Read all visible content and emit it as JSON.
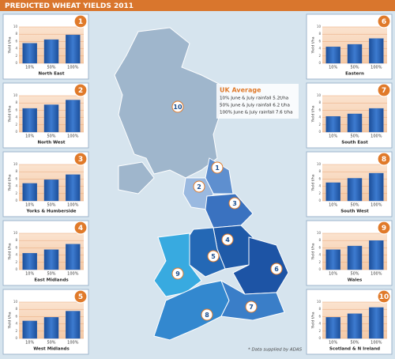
{
  "title": "PREDICTED WHEAT YIELDS 2011",
  "uk_average": {
    "heading": "UK Average",
    "lines": [
      "10% June & July rainfall 5.2t/ha",
      "50% June & July rainfall 6.2 t/ha",
      "100% June & July rainfall 7.6 t/ha"
    ]
  },
  "footnote": "* Data supplied by ADAS",
  "chart_data": [
    {
      "type": "bar",
      "badge": "1",
      "title": "North East",
      "y_label": "Yield t/ha",
      "categories": [
        "10%",
        "50%",
        "100%"
      ],
      "values": [
        5.5,
        6.5,
        7.8
      ],
      "color": "#2a63b3",
      "ylim": [
        0,
        10
      ],
      "yticks": [
        0,
        2,
        4,
        6,
        8,
        10
      ],
      "grid": true
    },
    {
      "type": "bar",
      "badge": "2",
      "title": "North West",
      "y_label": "Yield t/ha",
      "categories": [
        "10%",
        "50%",
        "100%"
      ],
      "values": [
        6.5,
        7.5,
        8.8
      ],
      "color": "#2a63b3",
      "ylim": [
        0,
        10
      ],
      "yticks": [
        0,
        2,
        4,
        6,
        8,
        10
      ],
      "grid": true
    },
    {
      "type": "bar",
      "badge": "3",
      "title": "Yorks & Humberside",
      "y_label": "Yield t/ha",
      "categories": [
        "10%",
        "50%",
        "100%"
      ],
      "values": [
        4.8,
        5.8,
        7.2
      ],
      "color": "#2a63b3",
      "ylim": [
        0,
        10
      ],
      "yticks": [
        0,
        2,
        4,
        6,
        8,
        10
      ],
      "grid": true
    },
    {
      "type": "bar",
      "badge": "4",
      "title": "East Midlands",
      "y_label": "Yield t/ha",
      "categories": [
        "10%",
        "50%",
        "100%"
      ],
      "values": [
        4.5,
        5.5,
        7.0
      ],
      "color": "#2a63b3",
      "ylim": [
        0,
        10
      ],
      "yticks": [
        0,
        2,
        4,
        6,
        8,
        10
      ],
      "grid": true
    },
    {
      "type": "bar",
      "badge": "5",
      "title": "West Midlands",
      "y_label": "Yield t/ha",
      "categories": [
        "10%",
        "50%",
        "100%"
      ],
      "values": [
        4.8,
        5.8,
        7.5
      ],
      "color": "#2a63b3",
      "ylim": [
        0,
        10
      ],
      "yticks": [
        0,
        2,
        4,
        6,
        8,
        10
      ],
      "grid": true
    },
    {
      "type": "bar",
      "badge": "6",
      "title": "Eastern",
      "y_label": "Yield t/ha",
      "categories": [
        "10%",
        "50%",
        "100%"
      ],
      "values": [
        4.5,
        5.2,
        6.8
      ],
      "color": "#2a63b3",
      "ylim": [
        0,
        10
      ],
      "yticks": [
        0,
        2,
        4,
        6,
        8,
        10
      ],
      "grid": true
    },
    {
      "type": "bar",
      "badge": "7",
      "title": "South East",
      "y_label": "Yield t/ha",
      "categories": [
        "10%",
        "50%",
        "100%"
      ],
      "values": [
        4.3,
        5.0,
        6.5
      ],
      "color": "#2a63b3",
      "ylim": [
        0,
        10
      ],
      "yticks": [
        0,
        2,
        4,
        6,
        8,
        10
      ],
      "grid": true
    },
    {
      "type": "bar",
      "badge": "8",
      "title": "South West",
      "y_label": "Yield t/ha",
      "categories": [
        "10%",
        "50%",
        "100%"
      ],
      "values": [
        5.0,
        6.2,
        7.6
      ],
      "color": "#2a63b3",
      "ylim": [
        0,
        10
      ],
      "yticks": [
        0,
        2,
        4,
        6,
        8,
        10
      ],
      "grid": true
    },
    {
      "type": "bar",
      "badge": "9",
      "title": "Wales",
      "y_label": "Yield t/ha",
      "categories": [
        "10%",
        "50%",
        "100%"
      ],
      "values": [
        5.5,
        6.5,
        8.0
      ],
      "color": "#2a63b3",
      "ylim": [
        0,
        10
      ],
      "yticks": [
        0,
        2,
        4,
        6,
        8,
        10
      ],
      "grid": true
    },
    {
      "type": "bar",
      "badge": "10",
      "title": "Scotland & N Ireland",
      "y_label": "Yield t/ha",
      "categories": [
        "10%",
        "50%",
        "100%"
      ],
      "values": [
        5.8,
        6.8,
        8.5
      ],
      "color": "#2a63b3",
      "ylim": [
        0,
        10
      ],
      "yticks": [
        0,
        2,
        4,
        6,
        8,
        10
      ],
      "grid": true
    }
  ]
}
